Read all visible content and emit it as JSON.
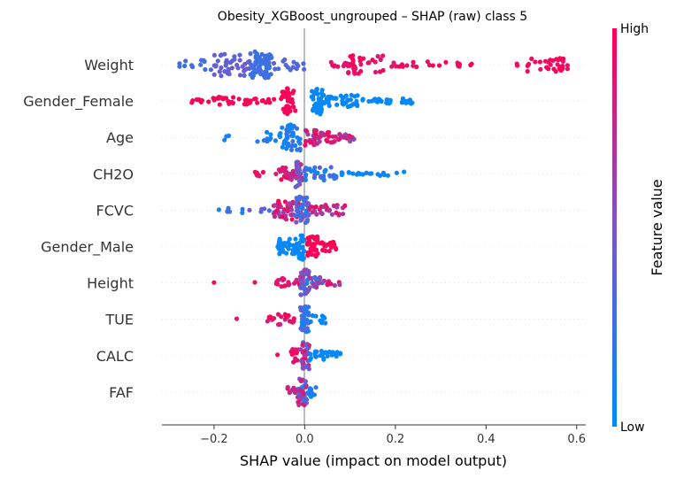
{
  "chart_data": {
    "type": "scatter",
    "subtype": "shap-beeswarm",
    "title": "Obesity_XGBoost_ungrouped – SHAP (raw) class 5",
    "xlabel": "SHAP value (impact on model output)",
    "xlim": [
      -0.315,
      0.62
    ],
    "xticks": [
      -0.2,
      0.0,
      0.2,
      0.4,
      0.6
    ],
    "xtick_labels": [
      "−0.2",
      "0.0",
      "0.2",
      "0.4",
      "0.6"
    ],
    "grid": false,
    "colorbar": {
      "label": "Feature value",
      "high_label": "High",
      "low_label": "Low",
      "low_color": "#008bfb",
      "high_color": "#ff0052"
    },
    "features": [
      {
        "name": "Weight",
        "clusters": [
          [
            -0.28,
            -0.2,
            0.35,
            0.25,
            12,
            0.4
          ],
          [
            -0.2,
            -0.12,
            0.35,
            0.45,
            40,
            0.85
          ],
          [
            -0.12,
            -0.07,
            0.2,
            0.3,
            70,
            1.0
          ],
          [
            -0.07,
            0.0,
            0.35,
            0.3,
            15,
            0.4
          ],
          [
            0.05,
            0.09,
            0.8,
            0.95,
            8,
            0.2
          ],
          [
            0.09,
            0.18,
            0.85,
            1.0,
            35,
            0.7
          ],
          [
            0.19,
            0.25,
            0.85,
            1.0,
            10,
            0.2
          ],
          [
            0.27,
            0.38,
            0.85,
            1.0,
            14,
            0.25
          ],
          [
            0.45,
            0.47,
            0.9,
            1.0,
            2,
            0.1
          ],
          [
            0.49,
            0.58,
            0.9,
            1.0,
            30,
            0.55
          ]
        ]
      },
      {
        "name": "Gender_Female",
        "clusters": [
          [
            -0.25,
            -0.21,
            0.95,
            1.0,
            8,
            0.15
          ],
          [
            -0.21,
            -0.1,
            0.95,
            1.0,
            30,
            0.3
          ],
          [
            -0.1,
            -0.05,
            0.95,
            1.0,
            8,
            0.2
          ],
          [
            -0.05,
            -0.02,
            0.95,
            1.0,
            40,
            1.0
          ],
          [
            0.015,
            0.04,
            0.0,
            0.05,
            45,
            1.0
          ],
          [
            0.04,
            0.12,
            0.0,
            0.05,
            40,
            0.45
          ],
          [
            0.12,
            0.24,
            0.0,
            0.05,
            30,
            0.2
          ]
        ]
      },
      {
        "name": "Age",
        "clusters": [
          [
            -0.18,
            -0.16,
            0.0,
            0.1,
            3,
            0.2
          ],
          [
            -0.11,
            -0.05,
            0.0,
            0.2,
            12,
            0.4
          ],
          [
            -0.05,
            -0.01,
            0.0,
            0.3,
            45,
            1.0
          ],
          [
            0.0,
            0.04,
            0.6,
            1.0,
            25,
            0.6
          ],
          [
            0.04,
            0.11,
            0.5,
            1.0,
            30,
            0.4
          ]
        ]
      },
      {
        "name": "CH2O",
        "clusters": [
          [
            -0.11,
            -0.06,
            0.8,
            1.0,
            8,
            0.2
          ],
          [
            -0.06,
            -0.01,
            0.7,
            1.0,
            30,
            0.5
          ],
          [
            -0.02,
            0.0,
            0.3,
            0.8,
            25,
            1.0
          ],
          [
            0.0,
            0.07,
            0.0,
            0.4,
            35,
            0.5
          ],
          [
            0.07,
            0.23,
            0.0,
            0.1,
            20,
            0.15
          ]
        ]
      },
      {
        "name": "FCVC",
        "clusters": [
          [
            -0.19,
            -0.16,
            0.0,
            0.3,
            5,
            0.15
          ],
          [
            -0.14,
            -0.05,
            0.0,
            0.5,
            10,
            0.2
          ],
          [
            -0.07,
            -0.01,
            0.5,
            1.0,
            40,
            0.7
          ],
          [
            -0.02,
            0.01,
            0.1,
            0.6,
            45,
            1.0
          ],
          [
            0.01,
            0.09,
            0.6,
            1.0,
            30,
            0.4
          ]
        ]
      },
      {
        "name": "Gender_Male",
        "clusters": [
          [
            -0.06,
            -0.015,
            0.0,
            0.05,
            35,
            0.6
          ],
          [
            -0.015,
            0.0,
            0.0,
            0.05,
            30,
            1.0
          ],
          [
            0.005,
            0.03,
            0.95,
            1.0,
            35,
            0.75
          ],
          [
            0.03,
            0.07,
            0.95,
            1.0,
            20,
            0.35
          ]
        ]
      },
      {
        "name": "Height",
        "clusters": [
          [
            -0.2,
            -0.2,
            0.9,
            1.0,
            1,
            0.1
          ],
          [
            -0.11,
            -0.11,
            0.9,
            1.0,
            1,
            0.1
          ],
          [
            -0.065,
            -0.01,
            0.7,
            1.0,
            20,
            0.35
          ],
          [
            -0.01,
            0.01,
            0.1,
            0.7,
            40,
            1.0
          ],
          [
            0.01,
            0.04,
            0.2,
            0.7,
            20,
            0.45
          ],
          [
            0.04,
            0.08,
            0.6,
            1.0,
            8,
            0.2
          ]
        ]
      },
      {
        "name": "TUE",
        "clusters": [
          [
            -0.15,
            -0.15,
            0.8,
            1.0,
            1,
            0.1
          ],
          [
            -0.09,
            -0.06,
            0.7,
            1.0,
            6,
            0.2
          ],
          [
            -0.06,
            -0.02,
            0.8,
            1.0,
            15,
            0.4
          ],
          [
            -0.01,
            0.01,
            0.0,
            0.4,
            45,
            1.0
          ],
          [
            0.01,
            0.05,
            0.0,
            0.1,
            10,
            0.3
          ]
        ]
      },
      {
        "name": "CALC",
        "clusters": [
          [
            -0.06,
            -0.06,
            0.9,
            1.0,
            1,
            0.1
          ],
          [
            -0.03,
            -0.01,
            0.8,
            1.0,
            15,
            0.5
          ],
          [
            -0.01,
            0.01,
            0.3,
            1.0,
            35,
            1.0
          ],
          [
            0.01,
            0.04,
            0.0,
            0.1,
            15,
            0.35
          ],
          [
            0.04,
            0.08,
            0.0,
            0.05,
            15,
            0.3
          ]
        ]
      },
      {
        "name": "FAF",
        "clusters": [
          [
            -0.04,
            -0.015,
            0.75,
            1.0,
            10,
            0.4
          ],
          [
            -0.015,
            0.005,
            0.2,
            1.0,
            40,
            1.0
          ],
          [
            0.005,
            0.025,
            0.0,
            0.2,
            10,
            0.4
          ]
        ]
      }
    ]
  }
}
